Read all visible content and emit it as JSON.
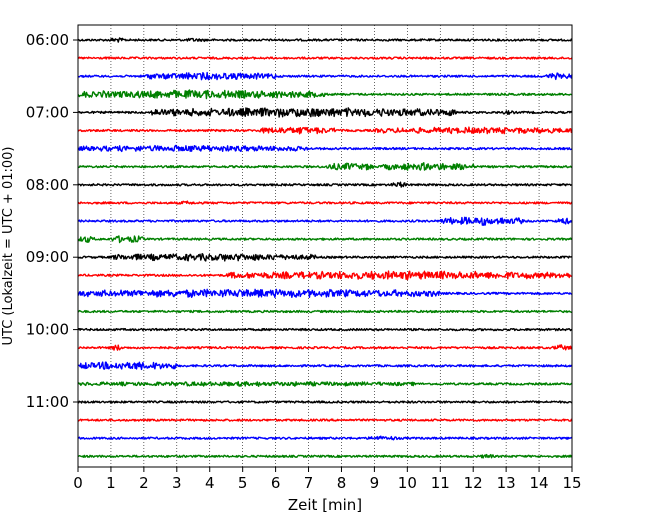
{
  "chart_data": {
    "type": "line",
    "title": "",
    "xlabel": "Zeit  [min]",
    "ylabel": "UTC (Lokalzeit = UTC + 01:00)",
    "xlim": [
      0,
      15
    ],
    "x_ticks": [
      0,
      1,
      2,
      3,
      4,
      5,
      6,
      7,
      8,
      9,
      10,
      11,
      12,
      13,
      14,
      15
    ],
    "x_grid": "dotted vertical at each minute",
    "y_tick_labels": [
      "06:00",
      "07:00",
      "08:00",
      "09:00",
      "10:00",
      "11:00"
    ],
    "trace_interval_min": 15,
    "trace_colors": [
      "#000000",
      "#ff0000",
      "#0000ff",
      "#008000"
    ],
    "traces": [
      {
        "start": "06:00",
        "color": "#000000",
        "bursts": [
          [
            0.9,
            1.5,
            2.5
          ],
          [
            3.2,
            4.0,
            2
          ]
        ]
      },
      {
        "start": "06:15",
        "color": "#ff0000",
        "bursts": []
      },
      {
        "start": "06:30",
        "color": "#0000ff",
        "bursts": [
          [
            2.0,
            6.0,
            4
          ],
          [
            14.2,
            15.0,
            3.5
          ]
        ]
      },
      {
        "start": "06:45",
        "color": "#008000",
        "bursts": [
          [
            0.0,
            7.5,
            4.5
          ]
        ]
      },
      {
        "start": "07:00",
        "color": "#000000",
        "bursts": [
          [
            2.2,
            11.5,
            5
          ],
          [
            12.8,
            13.3,
            2
          ]
        ]
      },
      {
        "start": "07:15",
        "color": "#ff0000",
        "bursts": [
          [
            5.5,
            7.8,
            4
          ],
          [
            9.0,
            15.0,
            3.5
          ]
        ]
      },
      {
        "start": "07:30",
        "color": "#0000ff",
        "bursts": [
          [
            0.0,
            7.0,
            3.5
          ]
        ]
      },
      {
        "start": "07:45",
        "color": "#008000",
        "bursts": [
          [
            7.5,
            9.0,
            4
          ],
          [
            9.2,
            12.0,
            4
          ]
        ]
      },
      {
        "start": "08:00",
        "color": "#000000",
        "bursts": [
          [
            9.5,
            10.0,
            3
          ]
        ]
      },
      {
        "start": "08:15",
        "color": "#ff0000",
        "bursts": [
          [
            3.0,
            3.7,
            2
          ]
        ]
      },
      {
        "start": "08:30",
        "color": "#0000ff",
        "bursts": [
          [
            11.0,
            13.5,
            4.5
          ],
          [
            14.5,
            15.0,
            3.5
          ]
        ]
      },
      {
        "start": "08:45",
        "color": "#008000",
        "bursts": [
          [
            0.0,
            0.5,
            3.5
          ],
          [
            1.0,
            2.0,
            4
          ]
        ]
      },
      {
        "start": "09:00",
        "color": "#000000",
        "bursts": [
          [
            1.0,
            7.2,
            4
          ]
        ]
      },
      {
        "start": "09:15",
        "color": "#ff0000",
        "bursts": [
          [
            4.5,
            15.0,
            4.5
          ]
        ]
      },
      {
        "start": "09:30",
        "color": "#0000ff",
        "bursts": [
          [
            0.0,
            11.0,
            4.5
          ]
        ]
      },
      {
        "start": "09:45",
        "color": "#008000",
        "bursts": []
      },
      {
        "start": "10:00",
        "color": "#000000",
        "bursts": []
      },
      {
        "start": "10:15",
        "color": "#ff0000",
        "bursts": [
          [
            1.0,
            1.3,
            3.5
          ],
          [
            14.4,
            15.0,
            3
          ]
        ]
      },
      {
        "start": "10:30",
        "color": "#0000ff",
        "bursts": [
          [
            0.0,
            3.0,
            4.5
          ]
        ]
      },
      {
        "start": "10:45",
        "color": "#008000",
        "bursts": [
          [
            0.0,
            10.3,
            2.5
          ]
        ]
      },
      {
        "start": "11:00",
        "color": "#000000",
        "bursts": []
      },
      {
        "start": "11:15",
        "color": "#ff0000",
        "bursts": []
      },
      {
        "start": "11:30",
        "color": "#0000ff",
        "bursts": [
          [
            8.8,
            9.7,
            2.5
          ]
        ]
      },
      {
        "start": "11:45",
        "color": "#008000",
        "bursts": [
          [
            12.2,
            12.6,
            2.5
          ]
        ]
      }
    ]
  }
}
